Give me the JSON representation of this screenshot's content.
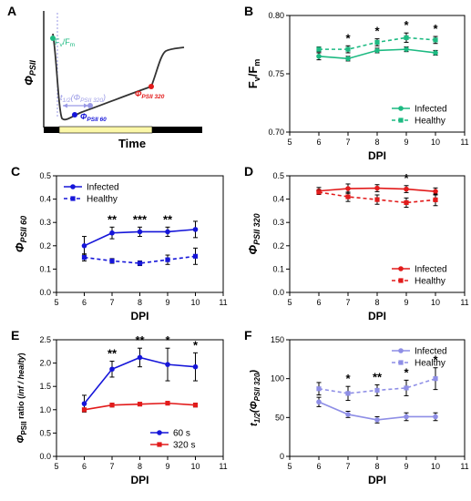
{
  "colors": {
    "infected_B": "#1dba82",
    "healthy_B": "#1dba82",
    "infected_C": "#1616d9",
    "healthy_C": "#1616d9",
    "infected_D": "#e21b1b",
    "healthy_D": "#e21b1b",
    "series_60s": "#1616d9",
    "series_320s": "#e21b1b",
    "infected_F": "#8e8ee6",
    "healthy_F": "#8e8ee6",
    "error_bar": "#000000",
    "schematic_curve": "#333333",
    "schematic_dash": "#9a9ae6",
    "schematic_light_bar": "#fbf7a8",
    "schematic_dark_bar": "#000000",
    "fvfm_point": "#1dba82",
    "psii60_point": "#1616d9",
    "psii320_point": "#e21b1b",
    "t12_arrow": "#9a9ae6"
  },
  "chart_data": [
    {
      "panel": "A",
      "type": "diagram",
      "ylabel": "Φ",
      "ylabel_sub": "PSII",
      "xlabel": "Time",
      "annotations": {
        "fvfm": {
          "main": "F",
          "sub1": "v",
          "slash": "/F",
          "sub2": "m"
        },
        "t12": {
          "main": "t",
          "sub": "1/2",
          "paren_open": "(Φ",
          "paren_sub": "PSII 320",
          "paren_close": ")"
        },
        "psii60": {
          "main": "Φ",
          "sub": "PSII 60"
        },
        "psii320": {
          "main": "Φ",
          "sub": "PSII 320"
        }
      }
    },
    {
      "panel": "B",
      "type": "line",
      "xlabel": "DPI",
      "ylabel_main": "F",
      "ylabel_sub1": "v",
      "ylabel_mid": "/F",
      "ylabel_sub2": "m",
      "xlim": [
        5,
        11
      ],
      "ylim": [
        0.7,
        0.8
      ],
      "xticks": [
        5,
        6,
        7,
        8,
        9,
        10,
        11
      ],
      "yticks": [
        "0.70",
        "0.75",
        "0.80"
      ],
      "ytick_values": [
        0.7,
        0.75,
        0.8
      ],
      "legend": [
        "Infected",
        "Healthy"
      ],
      "legend_position": "bottom-right",
      "x": [
        6,
        7,
        8,
        9,
        10
      ],
      "series": [
        {
          "name": "Infected",
          "values": [
            0.765,
            0.763,
            0.77,
            0.771,
            0.768
          ],
          "errors": [
            0.003,
            0.002,
            0.002,
            0.002,
            0.002
          ],
          "style": "solid",
          "marker": "circle"
        },
        {
          "name": "Healthy",
          "values": [
            0.771,
            0.771,
            0.777,
            0.781,
            0.779
          ],
          "errors": [
            0.002,
            0.003,
            0.003,
            0.004,
            0.003
          ],
          "style": "dashed",
          "marker": "square"
        }
      ],
      "significance": [
        {
          "x": 7,
          "label": "*"
        },
        {
          "x": 8,
          "label": "*"
        },
        {
          "x": 9,
          "label": "*"
        },
        {
          "x": 10,
          "label": "*"
        }
      ]
    },
    {
      "panel": "C",
      "type": "line",
      "xlabel": "DPI",
      "ylabel_main": "Φ",
      "ylabel_sub": "PSII 60",
      "xlim": [
        5,
        11
      ],
      "ylim": [
        0,
        0.5
      ],
      "xticks": [
        5,
        6,
        7,
        8,
        9,
        10,
        11
      ],
      "yticks": [
        "0.0",
        "0.1",
        "0.2",
        "0.3",
        "0.4",
        "0.5"
      ],
      "ytick_values": [
        0,
        0.1,
        0.2,
        0.3,
        0.4,
        0.5
      ],
      "legend": [
        "Infected",
        "Healthy"
      ],
      "legend_position": "top-left",
      "x": [
        6,
        7,
        8,
        9,
        10
      ],
      "series": [
        {
          "name": "Infected",
          "values": [
            0.2,
            0.255,
            0.26,
            0.26,
            0.27
          ],
          "errors": [
            0.04,
            0.025,
            0.02,
            0.02,
            0.035
          ],
          "style": "solid",
          "marker": "circle"
        },
        {
          "name": "Healthy",
          "values": [
            0.15,
            0.135,
            0.125,
            0.14,
            0.155
          ],
          "errors": [
            0.015,
            0.01,
            0.01,
            0.02,
            0.035
          ],
          "style": "dashed",
          "marker": "square"
        }
      ],
      "significance": [
        {
          "x": 7,
          "label": "**"
        },
        {
          "x": 8,
          "label": "***"
        },
        {
          "x": 9,
          "label": "**"
        }
      ]
    },
    {
      "panel": "D",
      "type": "line",
      "xlabel": "DPI",
      "ylabel_main": "Φ",
      "ylabel_sub": "PSII 320",
      "xlim": [
        5,
        11
      ],
      "ylim": [
        0,
        0.5
      ],
      "xticks": [
        5,
        6,
        7,
        8,
        9,
        10,
        11
      ],
      "yticks": [
        "0.0",
        "0.1",
        "0.2",
        "0.3",
        "0.4",
        "0.5"
      ],
      "ytick_values": [
        0,
        0.1,
        0.2,
        0.3,
        0.4,
        0.5
      ],
      "legend": [
        "Infected",
        "Healthy"
      ],
      "legend_position": "bottom-right",
      "x": [
        6,
        7,
        8,
        9,
        10
      ],
      "series": [
        {
          "name": "Infected",
          "values": [
            0.435,
            0.445,
            0.447,
            0.443,
            0.433
          ],
          "errors": [
            0.015,
            0.02,
            0.015,
            0.015,
            0.015
          ],
          "style": "solid",
          "marker": "circle"
        },
        {
          "name": "Healthy",
          "values": [
            0.43,
            0.41,
            0.398,
            0.385,
            0.397
          ],
          "errors": [
            0.01,
            0.02,
            0.02,
            0.02,
            0.025
          ],
          "style": "dashed",
          "marker": "square"
        }
      ],
      "significance": [
        {
          "x": 9,
          "label": "*"
        }
      ]
    },
    {
      "panel": "E",
      "type": "line",
      "xlabel": "DPI",
      "ylabel_main": "Φ",
      "ylabel_sub": "PSII",
      "ylabel_rest": " ratio (",
      "ylabel_italic": "inf / healty",
      "ylabel_close": ")",
      "xlim": [
        5,
        11
      ],
      "ylim": [
        0,
        2.5
      ],
      "xticks": [
        5,
        6,
        7,
        8,
        9,
        10,
        11
      ],
      "yticks": [
        "0.0",
        "0.5",
        "1.0",
        "1.5",
        "2.0",
        "2.5"
      ],
      "ytick_values": [
        0,
        0.5,
        1.0,
        1.5,
        2.0,
        2.5
      ],
      "legend": [
        "60 s",
        "320 s"
      ],
      "legend_position": "bottom-right",
      "x": [
        6,
        7,
        8,
        9,
        10
      ],
      "series": [
        {
          "name": "60 s",
          "values": [
            1.13,
            1.87,
            2.12,
            1.97,
            1.92
          ],
          "errors": [
            0.18,
            0.17,
            0.2,
            0.35,
            0.3
          ],
          "style": "solid",
          "marker": "circle"
        },
        {
          "name": "320 s",
          "values": [
            1.0,
            1.1,
            1.12,
            1.14,
            1.1
          ],
          "errors": [
            0.03,
            0.04,
            0.03,
            0.03,
            0.04
          ],
          "style": "solid",
          "marker": "square"
        }
      ],
      "significance": [
        {
          "x": 7,
          "label": "**"
        },
        {
          "x": 8,
          "label": "**"
        },
        {
          "x": 9,
          "label": "*"
        },
        {
          "x": 10,
          "label": "*"
        }
      ]
    },
    {
      "panel": "F",
      "type": "line",
      "xlabel": "DPI",
      "ylabel_main": "t",
      "ylabel_sub": "1/2",
      "ylabel_open": "(Φ",
      "ylabel_sub2": "PSII 320",
      "ylabel_close": ")",
      "xlim": [
        5,
        11
      ],
      "ylim": [
        0,
        150
      ],
      "xticks": [
        5,
        6,
        7,
        8,
        9,
        10,
        11
      ],
      "yticks": [
        "0",
        "50",
        "100",
        "150"
      ],
      "ytick_values": [
        0,
        50,
        100,
        150
      ],
      "legend": [
        "Infected",
        "Healthy"
      ],
      "legend_position": "top-right",
      "x": [
        6,
        7,
        8,
        9,
        10
      ],
      "series": [
        {
          "name": "Infected",
          "values": [
            70,
            54,
            47,
            51,
            51
          ],
          "errors": [
            6,
            4,
            4,
            5,
            5
          ],
          "style": "solid",
          "marker": "circle"
        },
        {
          "name": "Healthy",
          "values": [
            87,
            81,
            85,
            88,
            100
          ],
          "errors": [
            8,
            9,
            7,
            10,
            14
          ],
          "style": "dashed",
          "marker": "square"
        }
      ],
      "significance": [
        {
          "x": 7,
          "label": "*"
        },
        {
          "x": 8,
          "label": "**"
        },
        {
          "x": 9,
          "label": "*"
        },
        {
          "x": 10,
          "label": "*"
        }
      ]
    }
  ],
  "panel_letters": [
    "A",
    "B",
    "C",
    "D",
    "E",
    "F"
  ]
}
